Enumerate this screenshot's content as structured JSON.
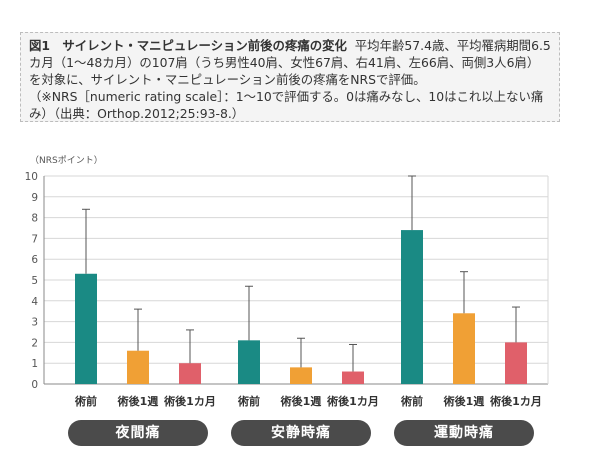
{
  "caption": {
    "title": "図1　サイレント・マニピュレーション前後の疼痛の変化",
    "body": "平均年齢57.4歳、平均罹病期間6.5カ月（1〜48カ月）の107肩（うち男性40肩、女性67肩、右41肩、左66肩、両側3人6肩）を対象に、サイレント・マニピュレーション前後の疼痛をNRSで評価。",
    "note": "（※NRS［numeric rating scale］：1〜10で評価する。0は痛みなし、10はこれ以上ない痛み）（出典：Orthop.2012;25:93-8.）"
  },
  "chart_data": {
    "type": "bar",
    "y_unit_label": "（NRSポイント）",
    "ylim": [
      0,
      10
    ],
    "yticks": [
      0,
      1,
      2,
      3,
      4,
      5,
      6,
      7,
      8,
      9,
      10
    ],
    "grid": true,
    "groups": [
      {
        "name": "夜間痛",
        "bars": [
          {
            "label": "術前",
            "value": 5.3,
            "error_upper": 8.4,
            "color": "#1a8a84"
          },
          {
            "label": "術後1週",
            "value": 1.6,
            "error_upper": 3.6,
            "color": "#f0a035"
          },
          {
            "label": "術後1カ月",
            "value": 1.0,
            "error_upper": 2.6,
            "color": "#e0606a"
          }
        ]
      },
      {
        "name": "安静時痛",
        "bars": [
          {
            "label": "術前",
            "value": 2.1,
            "error_upper": 4.7,
            "color": "#1a8a84"
          },
          {
            "label": "術後1週",
            "value": 0.8,
            "error_upper": 2.2,
            "color": "#f0a035"
          },
          {
            "label": "術後1カ月",
            "value": 0.6,
            "error_upper": 1.9,
            "color": "#e0606a"
          }
        ]
      },
      {
        "name": "運動時痛",
        "bars": [
          {
            "label": "術前",
            "value": 7.4,
            "error_upper": 10.0,
            "color": "#1a8a84"
          },
          {
            "label": "術後1週",
            "value": 3.4,
            "error_upper": 5.4,
            "color": "#f0a035"
          },
          {
            "label": "術後1カ月",
            "value": 2.0,
            "error_upper": 3.7,
            "color": "#e0606a"
          }
        ]
      }
    ]
  }
}
